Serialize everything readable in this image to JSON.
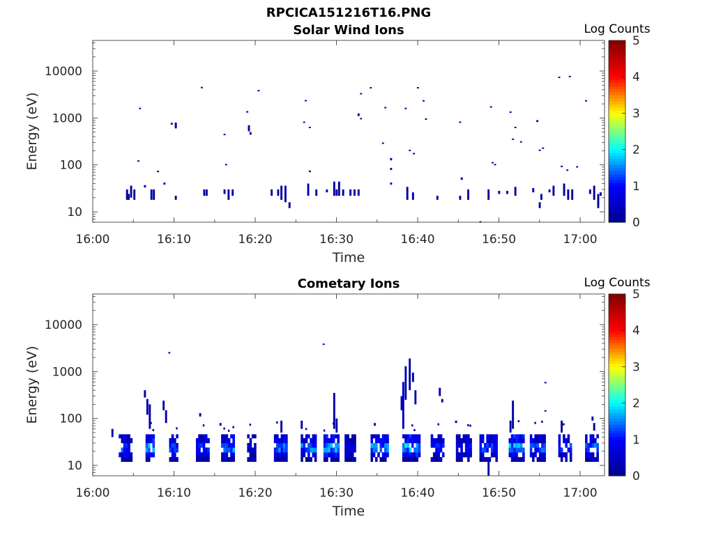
{
  "figure": {
    "title": "RPCICA151216T16.PNG"
  },
  "colormap": {
    "name": "jet",
    "stops": [
      "#00008f",
      "#0000ff",
      "#00ffff",
      "#ffff00",
      "#ff0000",
      "#800000"
    ]
  },
  "chart_data": [
    {
      "type": "heatmap",
      "title": "Solar Wind Ions",
      "xlabel": "Time",
      "ylabel": "Energy (eV)",
      "xlim": [
        0,
        63
      ],
      "x_units": "minutes after 16:00",
      "x_ticks": [
        {
          "value": 0,
          "label": "16:00"
        },
        {
          "value": 10,
          "label": "16:10"
        },
        {
          "value": 20,
          "label": "16:20"
        },
        {
          "value": 30,
          "label": "16:30"
        },
        {
          "value": 40,
          "label": "16:40"
        },
        {
          "value": 50,
          "label": "16:50"
        },
        {
          "value": 60,
          "label": "17:00"
        }
      ],
      "ylim": [
        6,
        45000
      ],
      "yscale": "log",
      "y_ticks": [
        {
          "value": 10,
          "label": "10"
        },
        {
          "value": 100,
          "label": "100"
        },
        {
          "value": 1000,
          "label": "1000"
        },
        {
          "value": 10000,
          "label": "10000"
        }
      ],
      "colorbar": {
        "label": "Log Counts",
        "range": [
          0,
          5
        ],
        "ticks": [
          "0",
          "1",
          "2",
          "3",
          "4",
          "5"
        ]
      },
      "cells": [
        [
          4.1,
          18,
          30,
          0.2
        ],
        [
          4.3,
          18,
          24,
          0.2
        ],
        [
          4.6,
          20,
          36,
          0.2
        ],
        [
          5.5,
          120,
          125,
          0.2
        ],
        [
          5.7,
          1550,
          1650,
          0.2
        ],
        [
          6.3,
          33,
          37,
          0.2
        ],
        [
          7.1,
          18,
          30,
          0.2
        ],
        [
          7.4,
          18,
          30,
          0.2
        ],
        [
          7.9,
          70,
          75,
          0.2
        ],
        [
          8.7,
          38,
          42,
          0.2
        ],
        [
          9.6,
          720,
          790,
          0.2
        ],
        [
          10.1,
          600,
          800,
          0.2
        ],
        [
          10.1,
          18,
          22,
          0.2
        ],
        [
          13.3,
          4400,
          4600,
          0.2
        ],
        [
          13.6,
          22,
          30,
          0.2
        ],
        [
          13.9,
          22,
          30,
          0.2
        ],
        [
          16.1,
          440,
          460,
          0.2
        ],
        [
          16.3,
          100,
          105,
          0.2
        ],
        [
          16.1,
          24,
          30,
          0.2
        ],
        [
          16.6,
          18,
          30,
          0.2
        ],
        [
          17.1,
          22,
          30,
          0.2
        ],
        [
          18.9,
          1300,
          1400,
          0.2
        ],
        [
          19.1,
          520,
          700,
          0.2
        ],
        [
          19.3,
          440,
          500,
          0.2
        ],
        [
          20.3,
          3800,
          3950,
          0.2
        ],
        [
          21.9,
          22,
          30,
          0.2
        ],
        [
          22.7,
          22,
          30,
          0.2
        ],
        [
          23.1,
          18,
          36,
          0.2
        ],
        [
          23.6,
          16,
          36,
          0.2
        ],
        [
          24.1,
          12,
          16,
          0.2
        ],
        [
          25.9,
          800,
          840,
          0.2
        ],
        [
          26.1,
          2300,
          2420,
          0.2
        ],
        [
          26.6,
          620,
          650,
          0.2
        ],
        [
          26.6,
          70,
          76,
          0.2
        ],
        [
          26.4,
          22,
          40,
          0.2
        ],
        [
          27.4,
          22,
          30,
          0.2
        ],
        [
          28.7,
          26,
          30,
          0.2
        ],
        [
          29.6,
          22,
          44,
          0.2
        ],
        [
          30.2,
          22,
          44,
          0.2
        ],
        [
          30.7,
          22,
          30,
          0.2
        ],
        [
          31.6,
          22,
          30,
          0.2
        ],
        [
          32.1,
          22,
          30,
          0.2
        ],
        [
          32.6,
          22,
          30,
          0.2
        ],
        [
          32.6,
          1100,
          1250,
          0.2
        ],
        [
          32.9,
          950,
          1000,
          0.2
        ],
        [
          32.9,
          3200,
          3400,
          0.2
        ],
        [
          34.1,
          4300,
          4550,
          0.2
        ],
        [
          35.6,
          290,
          300,
          0.2
        ],
        [
          35.9,
          1650,
          1720,
          0.2
        ],
        [
          36.6,
          125,
          140,
          0.2
        ],
        [
          36.6,
          78,
          86,
          0.2
        ],
        [
          36.6,
          38,
          42,
          0.2
        ],
        [
          38.4,
          1550,
          1650,
          0.2
        ],
        [
          38.9,
          200,
          210,
          0.2
        ],
        [
          39.4,
          170,
          180,
          0.2
        ],
        [
          39.9,
          4350,
          4550,
          0.2
        ],
        [
          40.6,
          2300,
          2400,
          0.2
        ],
        [
          40.9,
          930,
          980,
          0.2
        ],
        [
          38.6,
          18,
          34,
          0.2
        ],
        [
          39.3,
          18,
          26,
          0.2
        ],
        [
          42.3,
          18,
          22,
          0.2
        ],
        [
          45.1,
          810,
          840,
          0.2
        ],
        [
          45.3,
          48,
          54,
          0.2
        ],
        [
          45.1,
          18,
          22,
          0.2
        ],
        [
          46.1,
          18,
          30,
          0.2
        ],
        [
          47.6,
          6,
          6.3,
          0.2
        ],
        [
          48.9,
          1700,
          1780,
          0.2
        ],
        [
          49.1,
          108,
          115,
          0.2
        ],
        [
          49.4,
          100,
          105,
          0.2
        ],
        [
          49.9,
          24,
          28,
          0.2
        ],
        [
          48.6,
          18,
          30,
          0.2
        ],
        [
          50.9,
          24,
          28,
          0.2
        ],
        [
          51.3,
          1300,
          1380,
          0.2
        ],
        [
          51.6,
          350,
          365,
          0.2
        ],
        [
          51.9,
          620,
          650,
          0.2
        ],
        [
          52.6,
          300,
          320,
          0.2
        ],
        [
          51.9,
          22,
          34,
          0.2
        ],
        [
          54.6,
          820,
          900,
          0.2
        ],
        [
          54.9,
          205,
          212,
          0.2
        ],
        [
          55.3,
          225,
          235,
          0.2
        ],
        [
          54.1,
          26,
          32,
          0.2
        ],
        [
          55.1,
          18,
          24,
          0.2
        ],
        [
          54.9,
          12,
          16,
          0.2
        ],
        [
          56.1,
          26,
          30,
          0.2
        ],
        [
          57.3,
          7300,
          7600,
          0.2
        ],
        [
          57.6,
          92,
          96,
          0.2
        ],
        [
          57.9,
          22,
          40,
          0.2
        ],
        [
          58.4,
          18,
          30,
          0.2
        ],
        [
          58.6,
          7600,
          7900,
          0.2
        ],
        [
          58.3,
          75,
          80,
          0.2
        ],
        [
          59.5,
          90,
          94,
          0.2
        ],
        [
          60.6,
          2300,
          2400,
          0.2
        ],
        [
          61.1,
          24,
          30,
          0.2
        ],
        [
          61.6,
          18,
          36,
          0.2
        ],
        [
          62.1,
          12,
          24,
          0.2
        ],
        [
          62.4,
          22,
          26,
          0.2
        ],
        [
          56.6,
          22,
          36,
          0.2
        ],
        [
          58.9,
          18,
          30,
          0.2
        ],
        [
          5.0,
          18,
          30,
          0.2
        ],
        [
          29.9,
          22,
          30,
          0.2
        ]
      ]
    },
    {
      "type": "heatmap",
      "title": "Cometary Ions",
      "xlabel": "Time",
      "ylabel": "Energy (eV)",
      "xlim": [
        0,
        63
      ],
      "x_units": "minutes after 16:00",
      "x_ticks": [
        {
          "value": 0,
          "label": "16:00"
        },
        {
          "value": 10,
          "label": "16:10"
        },
        {
          "value": 20,
          "label": "16:20"
        },
        {
          "value": 30,
          "label": "16:30"
        },
        {
          "value": 40,
          "label": "16:40"
        },
        {
          "value": 50,
          "label": "16:50"
        },
        {
          "value": 60,
          "label": "17:00"
        }
      ],
      "ylim": [
        6,
        45000
      ],
      "yscale": "log",
      "y_ticks": [
        {
          "value": 10,
          "label": "10"
        },
        {
          "value": 100,
          "label": "100"
        },
        {
          "value": 1000,
          "label": "1000"
        },
        {
          "value": 10000,
          "label": "10000"
        }
      ],
      "colorbar": {
        "label": "Log Counts",
        "range": [
          0,
          5
        ],
        "ticks": [
          "0",
          "1",
          "2",
          "3",
          "4",
          "5"
        ]
      },
      "bursts": [
        {
          "t0": 3.2,
          "t1": 4.8,
          "core": 1.3
        },
        {
          "t0": 6.5,
          "t1": 7.6,
          "core": 1.8
        },
        {
          "t0": 9.4,
          "t1": 10.4,
          "core": 1.3
        },
        {
          "t0": 12.7,
          "t1": 14.3,
          "core": 1.2
        },
        {
          "t0": 15.8,
          "t1": 17.3,
          "core": 1.6
        },
        {
          "t0": 19.0,
          "t1": 20.1,
          "core": 0.6
        },
        {
          "t0": 22.3,
          "t1": 23.8,
          "core": 1.5
        },
        {
          "t0": 25.6,
          "t1": 27.4,
          "core": 1.5
        },
        {
          "t0": 28.4,
          "t1": 30.3,
          "core": 1.7
        },
        {
          "t0": 31.0,
          "t1": 32.4,
          "core": 0.8
        },
        {
          "t0": 34.2,
          "t1": 36.4,
          "core": 1.6
        },
        {
          "t0": 38.1,
          "t1": 40.2,
          "core": 1.8
        },
        {
          "t0": 41.6,
          "t1": 43.2,
          "core": 1.2
        },
        {
          "t0": 44.7,
          "t1": 46.4,
          "core": 1.0
        },
        {
          "t0": 47.6,
          "t1": 49.7,
          "core": 1.3
        },
        {
          "t0": 51.2,
          "t1": 52.9,
          "core": 1.8
        },
        {
          "t0": 53.8,
          "t1": 55.6,
          "core": 1.4
        },
        {
          "t0": 57.3,
          "t1": 58.9,
          "core": 1.3
        },
        {
          "t0": 60.6,
          "t1": 62.1,
          "core": 1.5
        }
      ],
      "cells": [
        [
          9.3,
          2500,
          2600,
          0.2
        ],
        [
          28.3,
          3800,
          3950,
          0.2
        ],
        [
          38.9,
          400,
          1900,
          0.2
        ],
        [
          38.4,
          250,
          1300,
          0.3
        ],
        [
          39.3,
          600,
          950,
          0.2
        ],
        [
          38.1,
          60,
          600,
          0.4
        ],
        [
          39.6,
          200,
          400,
          0.2
        ],
        [
          37.9,
          150,
          300,
          0.3
        ],
        [
          42.6,
          300,
          450,
          0.2
        ],
        [
          42.9,
          220,
          260,
          0.2
        ],
        [
          29.6,
          60,
          350,
          0.2
        ],
        [
          29.9,
          50,
          100,
          0.3
        ],
        [
          6.3,
          280,
          400,
          0.2
        ],
        [
          6.6,
          120,
          260,
          0.2
        ],
        [
          6.9,
          60,
          200,
          0.2
        ],
        [
          8.6,
          150,
          240,
          0.2
        ],
        [
          8.9,
          80,
          150,
          0.2
        ],
        [
          51.6,
          60,
          240,
          0.2
        ],
        [
          51.3,
          50,
          90,
          0.2
        ],
        [
          55.6,
          560,
          600,
          0.2
        ],
        [
          55.6,
          140,
          150,
          0.2
        ],
        [
          57.6,
          50,
          90,
          0.2
        ],
        [
          61.4,
          90,
          110,
          0.2
        ],
        [
          61.6,
          55,
          80,
          0.2
        ],
        [
          48.6,
          6,
          12,
          0.2
        ],
        [
          23.1,
          50,
          90,
          0.2
        ],
        [
          25.6,
          60,
          90,
          0.2
        ],
        [
          34.6,
          70,
          80,
          0.2
        ],
        [
          13.1,
          110,
          130,
          0.2
        ],
        [
          15.6,
          70,
          80,
          0.2
        ],
        [
          2.3,
          40,
          60,
          0.2
        ],
        [
          44.6,
          80,
          90,
          0.2
        ]
      ]
    }
  ]
}
